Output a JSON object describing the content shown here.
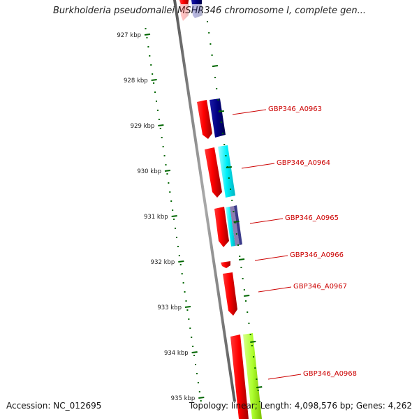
{
  "title": "Burkholderia pseudomallei MSHR346 chromosome I, complete gen...",
  "footer": {
    "accession": "Accession: NC_012695",
    "summary": "Topology: linear; Length: 4,098,576 bp; Genes: 4,262"
  },
  "ruler": {
    "ticks": [
      "927 kbp",
      "928 kbp",
      "929 kbp",
      "930 kbp",
      "931 kbp",
      "932 kbp",
      "933 kbp",
      "934 kbp",
      "935 kbp"
    ]
  },
  "genes": [
    {
      "id": "top",
      "label": ""
    },
    {
      "id": "a0963",
      "label": "GBP346_A0963"
    },
    {
      "id": "a0964",
      "label": "GBP346_A0964"
    },
    {
      "id": "a0965",
      "label": "GBP346_A0965"
    },
    {
      "id": "a0966",
      "label": "GBP346_A0966"
    },
    {
      "id": "a0967",
      "label": "GBP346_A0967"
    },
    {
      "id": "a0968",
      "label": "GBP346_A0968"
    }
  ],
  "colors": {
    "backbone": "#777777",
    "cds": "#ff0000",
    "blast_navy": "#000080",
    "blast_cyan": "#00ffff",
    "blast_purple": "#8c7fb0",
    "blast_lime": "#adff2f",
    "ruler": "#006600",
    "label": "#cc0000"
  }
}
